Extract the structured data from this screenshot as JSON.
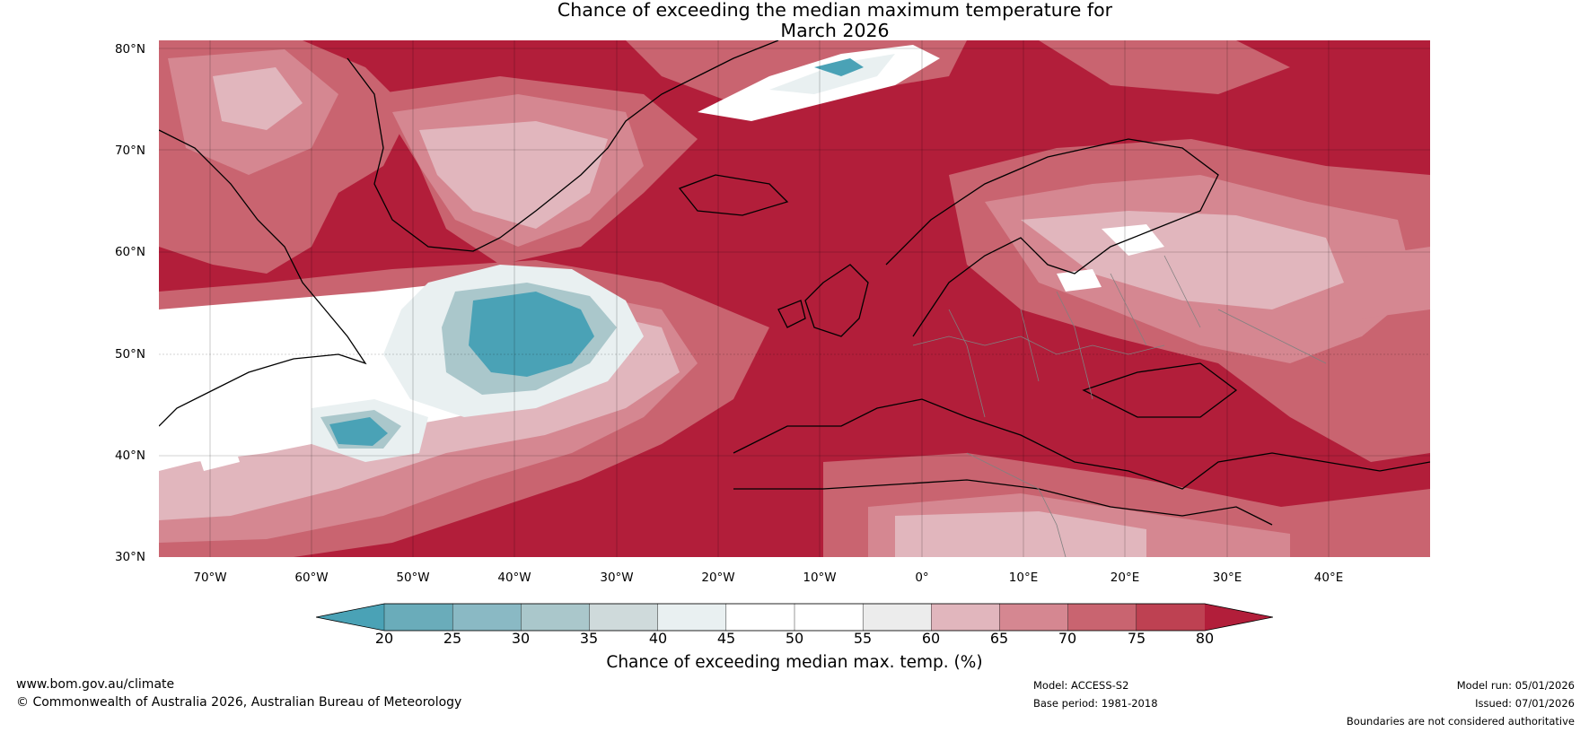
{
  "title": {
    "line1": "Chance of exceeding the median maximum temperature for",
    "line2": "March 2026"
  },
  "axes": {
    "lat_labels": [
      "80°N",
      "70°N",
      "60°N",
      "50°N",
      "40°N",
      "30°N"
    ],
    "lon_labels": [
      "70°W",
      "60°W",
      "50°W",
      "40°W",
      "30°W",
      "20°W",
      "10°W",
      "0°",
      "10°E",
      "20°E",
      "30°E",
      "40°E"
    ]
  },
  "colorbar": {
    "ticks": [
      "20",
      "25",
      "30",
      "35",
      "40",
      "45",
      "50",
      "55",
      "60",
      "65",
      "70",
      "75",
      "80"
    ],
    "title": "Chance of exceeding median max. temp. (%)",
    "colors": [
      "#4aa2b6",
      "#6aacba",
      "#8ab9c4",
      "#aac7cb",
      "#cfdadb",
      "#e9f0f1",
      "#ffffff",
      "#ffffff",
      "#ececec",
      "#e1b6bd",
      "#d58791",
      "#c96470",
      "#be4152",
      "#b21e3a"
    ]
  },
  "footer": {
    "website": "www.bom.gov.au/climate",
    "copyright": "© Commonwealth of Australia 2026, Australian Bureau of Meteorology",
    "model": "Model: ACCESS-S2",
    "base_period": "Base period: 1981-2018",
    "model_run": "Model run: 05/01/2026",
    "issued": "Issued: 07/01/2026",
    "disclaimer": "Boundaries are not considered authoritative"
  }
}
